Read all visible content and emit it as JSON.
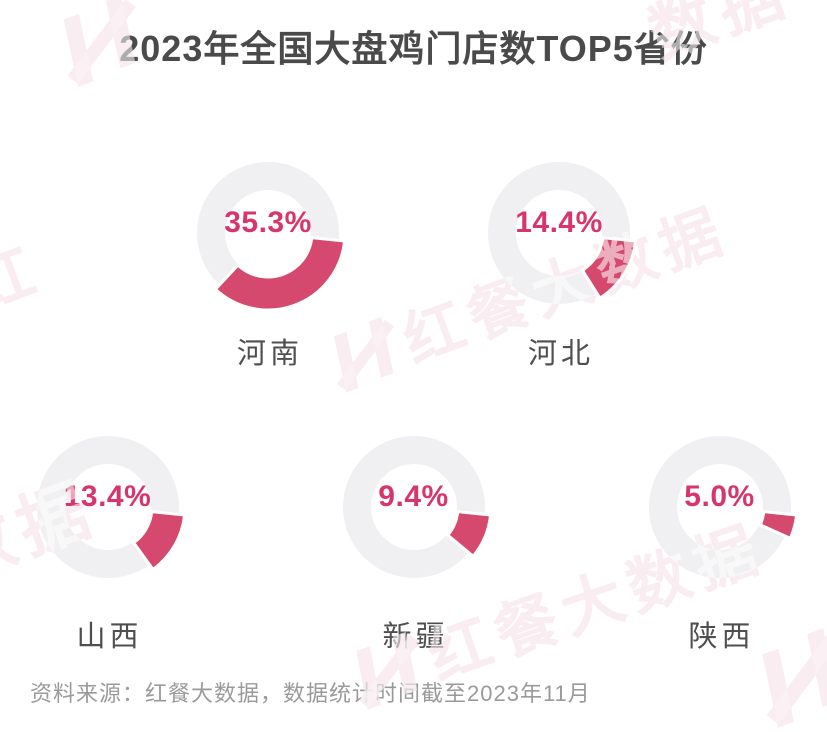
{
  "title": "2023年全国大盘鸡门店数TOP5省份",
  "source_note": "资料来源：红餐大数据，数据统计时间截至2023年11月",
  "watermark": {
    "text": "红餐大数据",
    "fragments": [
      "数据",
      "红",
      "数据"
    ]
  },
  "colors": {
    "arc": "#d5496e",
    "track": "#f0eff1",
    "percent_text": "#d8356a",
    "title_text": "#4a4a4a",
    "province_text": "#4f4f4f",
    "source_text": "#9a9a9a",
    "background": "#ffffff"
  },
  "chart_data": {
    "type": "pie",
    "subtype": "donut-multiples",
    "title": "2023年全国大盘鸡门店数TOP5省份",
    "unit": "%",
    "categories": [
      "河南",
      "河北",
      "山西",
      "新疆",
      "陕西"
    ],
    "values": [
      35.3,
      14.4,
      13.4,
      9.4,
      5.0
    ],
    "labels": [
      "35.3%",
      "14.4%",
      "13.4%",
      "9.4%",
      "5.0%"
    ],
    "start_angle_clock_deg": 96,
    "direction": "clockwise",
    "legend": "none",
    "layout_rows": [
      2,
      3
    ]
  }
}
